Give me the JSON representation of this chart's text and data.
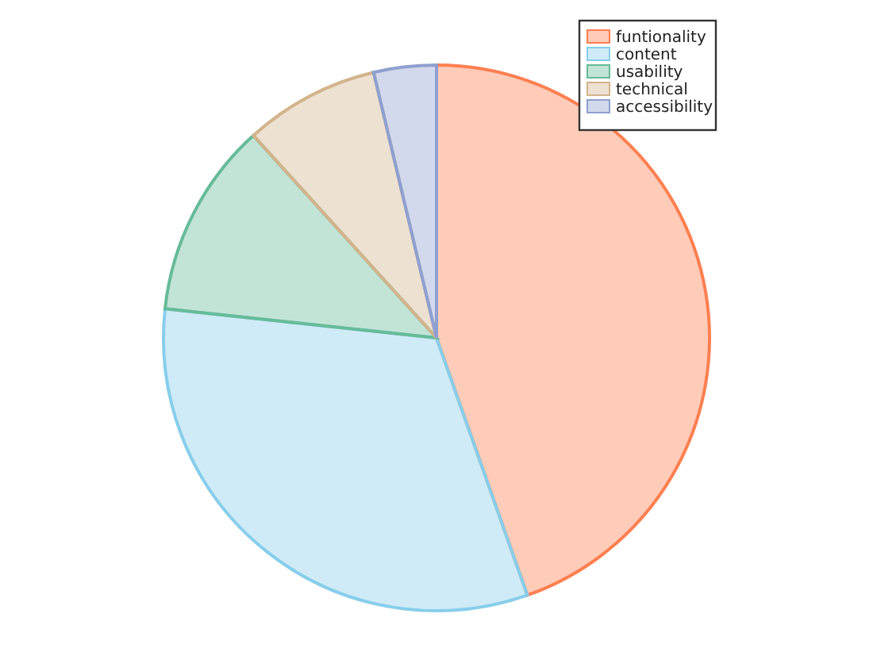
{
  "chart_data": {
    "type": "pie",
    "categories": [
      "funtionality",
      "content",
      "usability",
      "technical",
      "accessibility"
    ],
    "values": [
      44.6,
      32.1,
      11.6,
      8.0,
      3.7
    ],
    "colors": [
      "#ff7f50",
      "#87ceeb",
      "#66bb99",
      "#d2b48c",
      "#8fa0d0"
    ],
    "legend": "top right"
  }
}
